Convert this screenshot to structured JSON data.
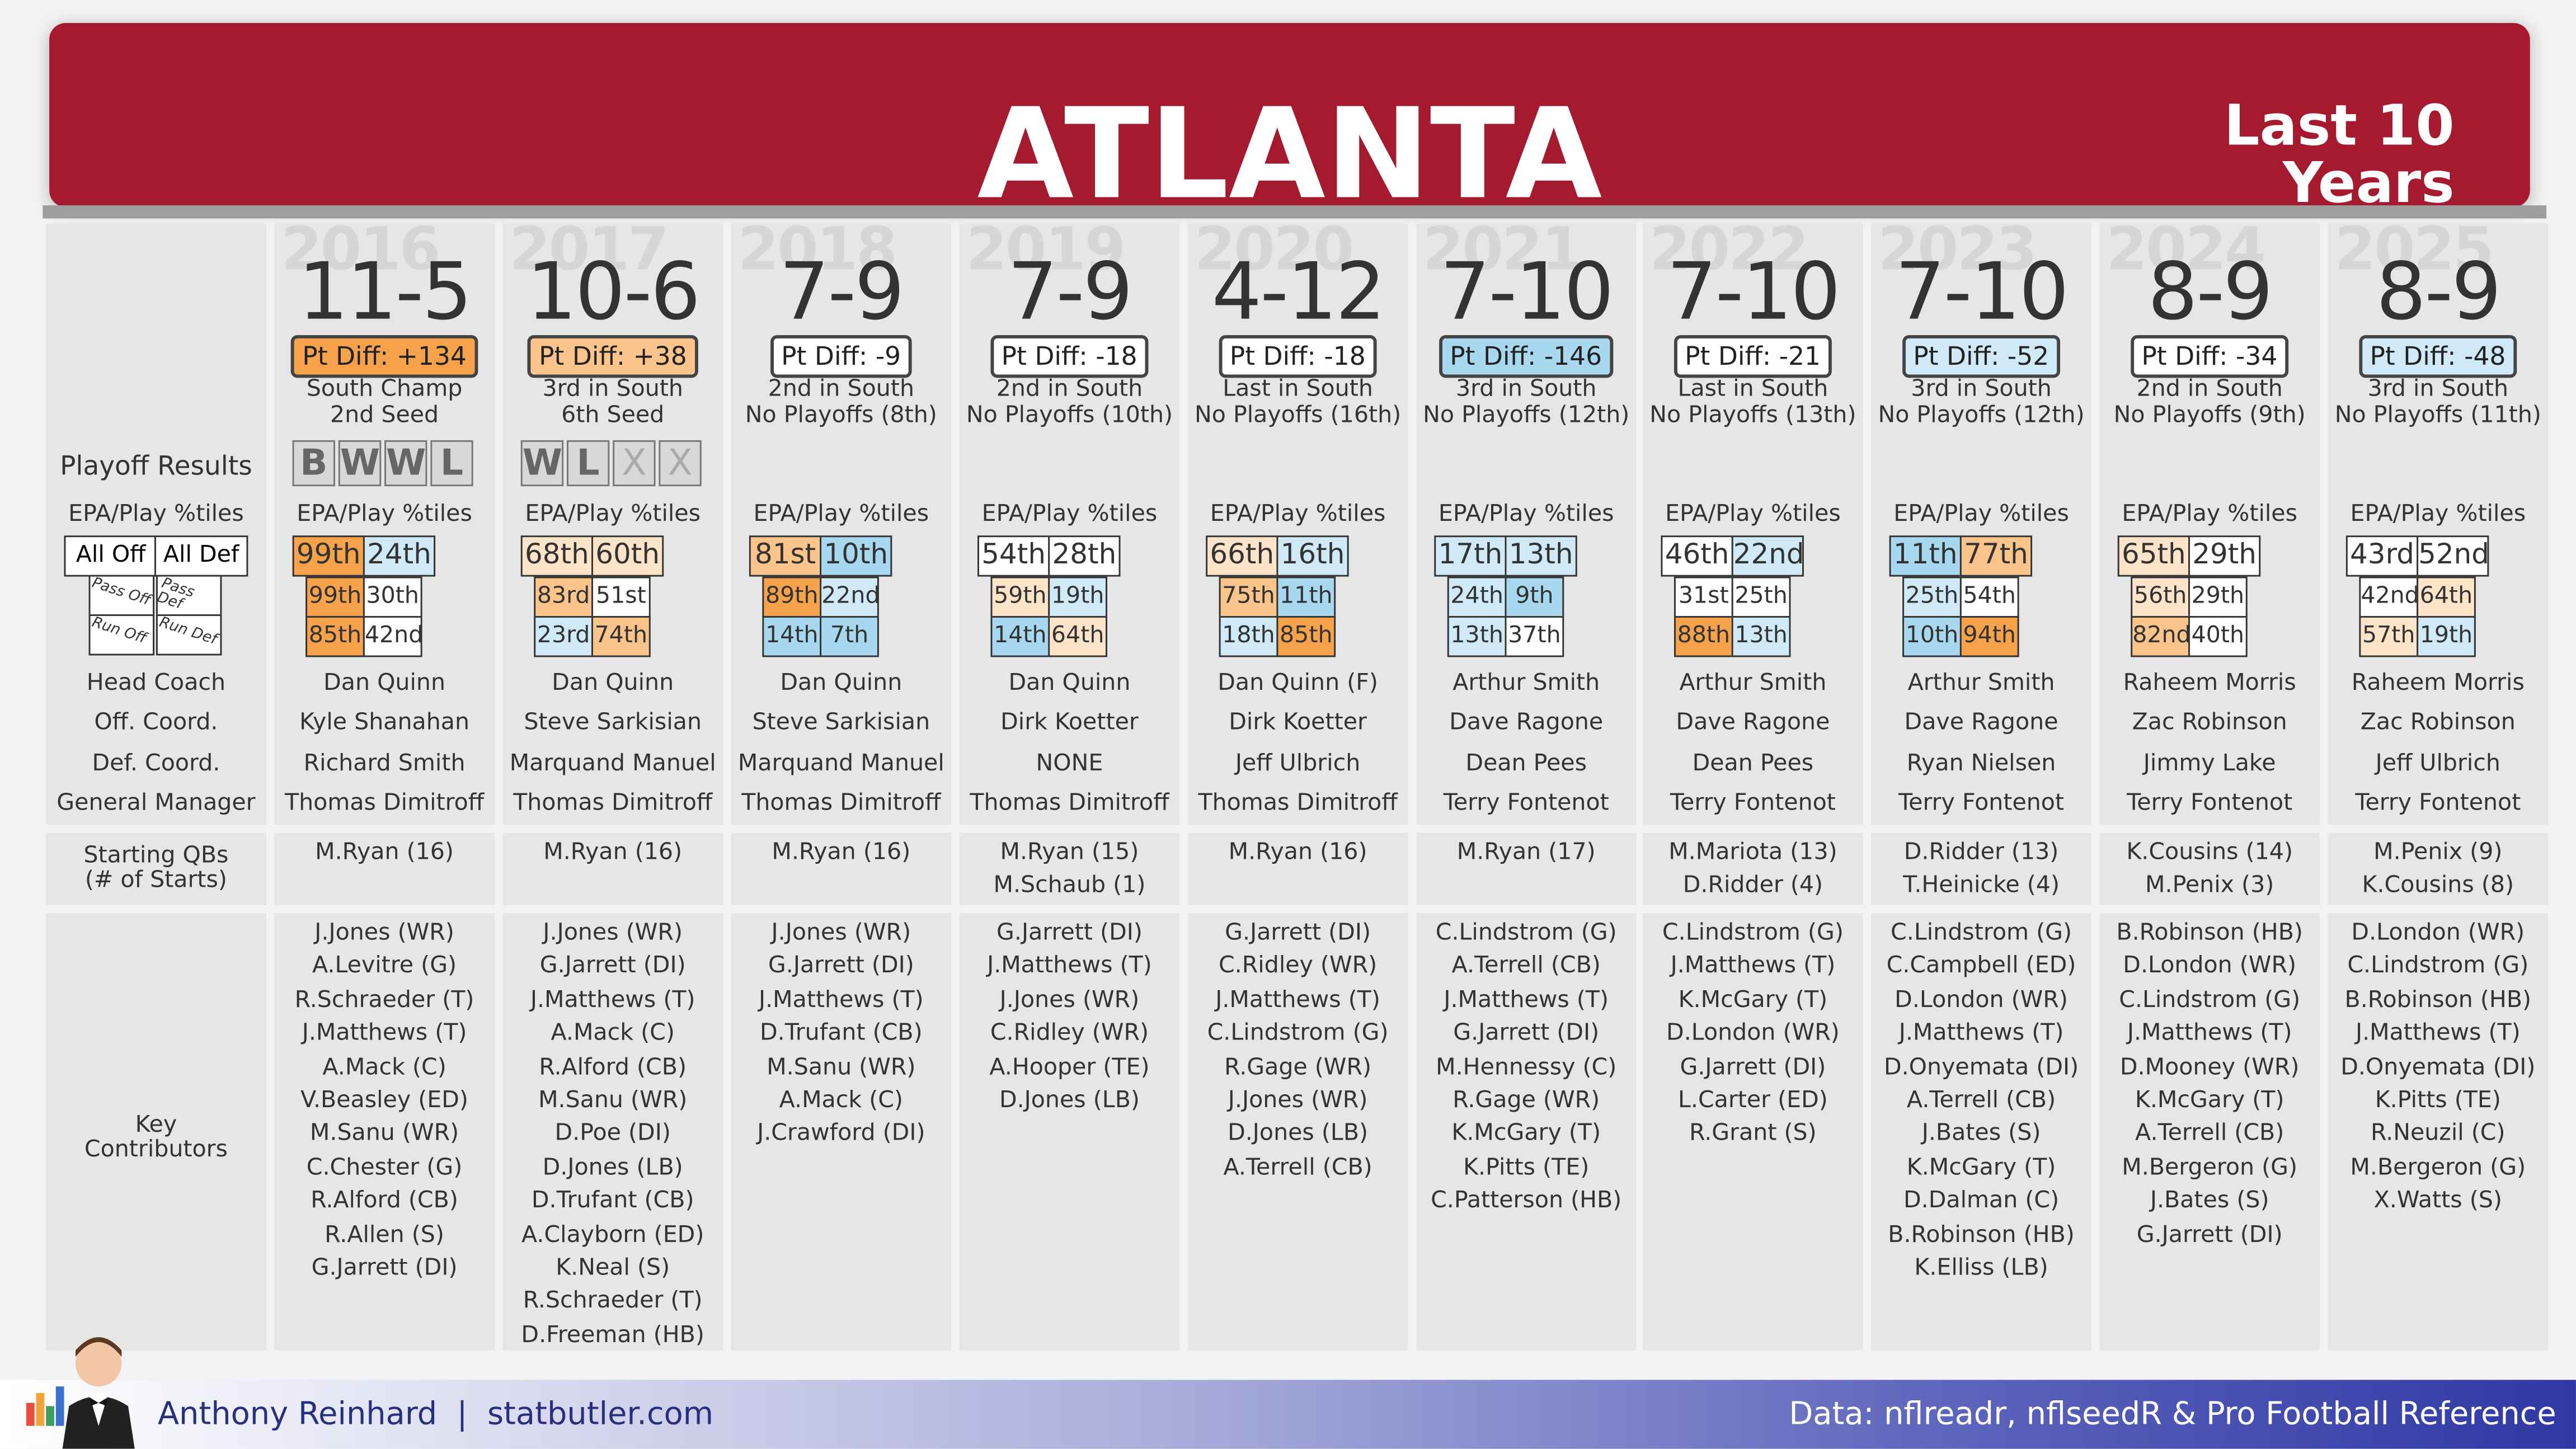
{
  "header": {
    "title": "ATLANTA",
    "subtitle_line1": "Last 10",
    "subtitle_line2": "Years"
  },
  "labels": {
    "playoff_results": "Playoff Results",
    "epa_header": "EPA/Play %tiles",
    "all_off": "All Off",
    "all_def": "All Def",
    "pass_off": "Pass Off",
    "pass_def": "Pass Def",
    "run_off": "Run Off",
    "run_def": "Run Def",
    "head_coach": "Head Coach",
    "off_coord": "Off. Coord.",
    "def_coord": "Def. Coord.",
    "general_manager": "General Manager",
    "starting_qbs_1": "Starting QBs",
    "starting_qbs_2": "(# of Starts)",
    "key_contributors_1": "Key",
    "key_contributors_2": "Contributors"
  },
  "colors": {
    "banner": "#a51a2f",
    "orange_dark": "#f5a24a",
    "orange_mid": "#fac48a",
    "orange_light": "#fde3c8",
    "blue_dark": "#a7d8ef",
    "blue_light": "#cfe9f6",
    "neutral": "#ffffff"
  },
  "seasons": [
    {
      "year": "2016",
      "record": "11-5",
      "pt_diff": "Pt Diff: +134",
      "finish": "South Champ",
      "seed": "2nd Seed",
      "pt_color": "#f5a24a",
      "playoffs": [
        {
          "letter": "B",
          "style": "result"
        },
        {
          "letter": "W",
          "style": "result"
        },
        {
          "letter": "W",
          "style": "result"
        },
        {
          "letter": "L",
          "style": "result"
        }
      ],
      "epa": {
        "off": {
          "value": "99th",
          "color": "#f5a24a"
        },
        "def": {
          "value": "24th",
          "color": "#cfe9f6"
        },
        "pass_off": {
          "value": "99th",
          "color": "#f5a24a"
        },
        "pass_def": {
          "value": "30th",
          "color": "#ffffff"
        },
        "run_off": {
          "value": "85th",
          "color": "#f5a24a"
        },
        "run_def": {
          "value": "42nd",
          "color": "#ffffff"
        }
      },
      "coach": "Dan Quinn",
      "oc": "Kyle Shanahan",
      "dc": "Richard Smith",
      "gm": "Thomas Dimitroff",
      "qbs": [
        "M.Ryan (16)"
      ],
      "contributors": [
        "J.Jones (WR)",
        "A.Levitre (G)",
        "R.Schraeder (T)",
        "J.Matthews (T)",
        "A.Mack (C)",
        "V.Beasley (ED)",
        "M.Sanu (WR)",
        "C.Chester (G)",
        "R.Alford (CB)",
        "R.Allen (S)",
        "G.Jarrett (DI)"
      ]
    },
    {
      "year": "2017",
      "record": "10-6",
      "pt_diff": "Pt Diff: +38",
      "finish": "3rd in South",
      "seed": "6th Seed",
      "pt_color": "#fac48a",
      "playoffs": [
        {
          "letter": "W",
          "style": "result"
        },
        {
          "letter": "L",
          "style": "result"
        },
        {
          "letter": "X",
          "style": "x"
        },
        {
          "letter": "X",
          "style": "x"
        }
      ],
      "epa": {
        "off": {
          "value": "68th",
          "color": "#fde3c8"
        },
        "def": {
          "value": "60th",
          "color": "#fde3c8"
        },
        "pass_off": {
          "value": "83rd",
          "color": "#fac48a"
        },
        "pass_def": {
          "value": "51st",
          "color": "#ffffff"
        },
        "run_off": {
          "value": "23rd",
          "color": "#cfe9f6"
        },
        "run_def": {
          "value": "74th",
          "color": "#fac48a"
        }
      },
      "coach": "Dan Quinn",
      "oc": "Steve Sarkisian",
      "dc": "Marquand Manuel",
      "gm": "Thomas Dimitroff",
      "qbs": [
        "M.Ryan (16)"
      ],
      "contributors": [
        "J.Jones (WR)",
        "G.Jarrett (DI)",
        "J.Matthews (T)",
        "A.Mack (C)",
        "R.Alford (CB)",
        "M.Sanu (WR)",
        "D.Poe (DI)",
        "D.Jones (LB)",
        "D.Trufant (CB)",
        "A.Clayborn (ED)",
        "K.Neal (S)",
        "R.Schraeder (T)",
        "D.Freeman (HB)"
      ]
    },
    {
      "year": "2018",
      "record": "7-9",
      "pt_diff": "Pt Diff: -9",
      "finish": "2nd in South",
      "seed": "No Playoffs (8th)",
      "pt_color": "#ffffff",
      "playoffs": [],
      "epa": {
        "off": {
          "value": "81st",
          "color": "#fac48a"
        },
        "def": {
          "value": "10th",
          "color": "#a7d8ef"
        },
        "pass_off": {
          "value": "89th",
          "color": "#f5a24a"
        },
        "pass_def": {
          "value": "22nd",
          "color": "#cfe9f6"
        },
        "run_off": {
          "value": "14th",
          "color": "#a7d8ef"
        },
        "run_def": {
          "value": "7th",
          "color": "#a7d8ef"
        }
      },
      "coach": "Dan Quinn",
      "oc": "Steve Sarkisian",
      "dc": "Marquand Manuel",
      "gm": "Thomas Dimitroff",
      "qbs": [
        "M.Ryan (16)"
      ],
      "contributors": [
        "J.Jones (WR)",
        "G.Jarrett (DI)",
        "J.Matthews (T)",
        "D.Trufant (CB)",
        "M.Sanu (WR)",
        "A.Mack (C)",
        "J.Crawford (DI)"
      ]
    },
    {
      "year": "2019",
      "record": "7-9",
      "pt_diff": "Pt Diff: -18",
      "finish": "2nd in South",
      "seed": "No Playoffs (10th)",
      "pt_color": "#ffffff",
      "playoffs": [],
      "epa": {
        "off": {
          "value": "54th",
          "color": "#ffffff"
        },
        "def": {
          "value": "28th",
          "color": "#ffffff"
        },
        "pass_off": {
          "value": "59th",
          "color": "#fde3c8"
        },
        "pass_def": {
          "value": "19th",
          "color": "#cfe9f6"
        },
        "run_off": {
          "value": "14th",
          "color": "#a7d8ef"
        },
        "run_def": {
          "value": "64th",
          "color": "#fde3c8"
        }
      },
      "coach": "Dan Quinn",
      "oc": "Dirk Koetter",
      "dc": "NONE",
      "gm": "Thomas Dimitroff",
      "qbs": [
        "M.Ryan (15)",
        "M.Schaub (1)"
      ],
      "contributors": [
        "G.Jarrett (DI)",
        "J.Matthews (T)",
        "J.Jones (WR)",
        "C.Ridley (WR)",
        "A.Hooper (TE)",
        "D.Jones (LB)"
      ]
    },
    {
      "year": "2020",
      "record": "4-12",
      "pt_diff": "Pt Diff: -18",
      "finish": "Last in South",
      "seed": "No Playoffs (16th)",
      "pt_color": "#ffffff",
      "playoffs": [],
      "epa": {
        "off": {
          "value": "66th",
          "color": "#fde3c8"
        },
        "def": {
          "value": "16th",
          "color": "#cfe9f6"
        },
        "pass_off": {
          "value": "75th",
          "color": "#fac48a"
        },
        "pass_def": {
          "value": "11th",
          "color": "#a7d8ef"
        },
        "run_off": {
          "value": "18th",
          "color": "#cfe9f6"
        },
        "run_def": {
          "value": "85th",
          "color": "#f5a24a"
        }
      },
      "coach": "Dan Quinn (F)",
      "oc": "Dirk Koetter",
      "dc": "Jeff Ulbrich",
      "gm": "Thomas Dimitroff",
      "qbs": [
        "M.Ryan (16)"
      ],
      "contributors": [
        "G.Jarrett (DI)",
        "C.Ridley (WR)",
        "J.Matthews (T)",
        "C.Lindstrom (G)",
        "R.Gage (WR)",
        "J.Jones (WR)",
        "D.Jones (LB)",
        "A.Terrell (CB)"
      ]
    },
    {
      "year": "2021",
      "record": "7-10",
      "pt_diff": "Pt Diff: -146",
      "finish": "3rd in South",
      "seed": "No Playoffs (12th)",
      "pt_color": "#a7d8ef",
      "playoffs": [],
      "epa": {
        "off": {
          "value": "17th",
          "color": "#cfe9f6"
        },
        "def": {
          "value": "13th",
          "color": "#cfe9f6"
        },
        "pass_off": {
          "value": "24th",
          "color": "#cfe9f6"
        },
        "pass_def": {
          "value": "9th",
          "color": "#a7d8ef"
        },
        "run_off": {
          "value": "13th",
          "color": "#cfe9f6"
        },
        "run_def": {
          "value": "37th",
          "color": "#ffffff"
        }
      },
      "coach": "Arthur Smith",
      "oc": "Dave Ragone",
      "dc": "Dean Pees",
      "gm": "Terry Fontenot",
      "qbs": [
        "M.Ryan (17)"
      ],
      "contributors": [
        "C.Lindstrom (G)",
        "A.Terrell (CB)",
        "J.Matthews (T)",
        "G.Jarrett (DI)",
        "M.Hennessy (C)",
        "R.Gage (WR)",
        "K.McGary (T)",
        "K.Pitts (TE)",
        "C.Patterson (HB)"
      ]
    },
    {
      "year": "2022",
      "record": "7-10",
      "pt_diff": "Pt Diff: -21",
      "finish": "Last in South",
      "seed": "No Playoffs (13th)",
      "pt_color": "#ffffff",
      "playoffs": [],
      "epa": {
        "off": {
          "value": "46th",
          "color": "#ffffff"
        },
        "def": {
          "value": "22nd",
          "color": "#cfe9f6"
        },
        "pass_off": {
          "value": "31st",
          "color": "#ffffff"
        },
        "pass_def": {
          "value": "25th",
          "color": "#ffffff"
        },
        "run_off": {
          "value": "88th",
          "color": "#f5a24a"
        },
        "run_def": {
          "value": "13th",
          "color": "#cfe9f6"
        }
      },
      "coach": "Arthur Smith",
      "oc": "Dave Ragone",
      "dc": "Dean Pees",
      "gm": "Terry Fontenot",
      "qbs": [
        "M.Mariota (13)",
        "D.Ridder (4)"
      ],
      "contributors": [
        "C.Lindstrom (G)",
        "J.Matthews (T)",
        "K.McGary (T)",
        "D.London (WR)",
        "G.Jarrett (DI)",
        "L.Carter (ED)",
        "R.Grant (S)"
      ]
    },
    {
      "year": "2023",
      "record": "7-10",
      "pt_diff": "Pt Diff: -52",
      "finish": "3rd in South",
      "seed": "No Playoffs (12th)",
      "pt_color": "#cfe9f6",
      "playoffs": [],
      "epa": {
        "off": {
          "value": "11th",
          "color": "#a7d8ef"
        },
        "def": {
          "value": "77th",
          "color": "#fac48a"
        },
        "pass_off": {
          "value": "25th",
          "color": "#cfe9f6"
        },
        "pass_def": {
          "value": "54th",
          "color": "#ffffff"
        },
        "run_off": {
          "value": "10th",
          "color": "#a7d8ef"
        },
        "run_def": {
          "value": "94th",
          "color": "#f5a24a"
        }
      },
      "coach": "Arthur Smith",
      "oc": "Dave Ragone",
      "dc": "Ryan Nielsen",
      "gm": "Terry Fontenot",
      "qbs": [
        "D.Ridder (13)",
        "T.Heinicke (4)"
      ],
      "contributors": [
        "C.Lindstrom (G)",
        "C.Campbell (ED)",
        "D.London (WR)",
        "J.Matthews (T)",
        "D.Onyemata (DI)",
        "A.Terrell (CB)",
        "J.Bates (S)",
        "K.McGary (T)",
        "D.Dalman (C)",
        "B.Robinson (HB)",
        "K.Elliss (LB)"
      ]
    },
    {
      "year": "2024",
      "record": "8-9",
      "pt_diff": "Pt Diff: -34",
      "finish": "2nd in South",
      "seed": "No Playoffs (9th)",
      "pt_color": "#ffffff",
      "playoffs": [],
      "epa": {
        "off": {
          "value": "65th",
          "color": "#fde3c8"
        },
        "def": {
          "value": "29th",
          "color": "#ffffff"
        },
        "pass_off": {
          "value": "56th",
          "color": "#fde3c8"
        },
        "pass_def": {
          "value": "29th",
          "color": "#ffffff"
        },
        "run_off": {
          "value": "82nd",
          "color": "#fac48a"
        },
        "run_def": {
          "value": "40th",
          "color": "#ffffff"
        }
      },
      "coach": "Raheem Morris",
      "oc": "Zac Robinson",
      "dc": "Jimmy Lake",
      "gm": "Terry Fontenot",
      "qbs": [
        "K.Cousins (14)",
        "M.Penix (3)"
      ],
      "contributors": [
        "B.Robinson (HB)",
        "D.London (WR)",
        "C.Lindstrom (G)",
        "J.Matthews (T)",
        "D.Mooney (WR)",
        "K.McGary (T)",
        "A.Terrell (CB)",
        "M.Bergeron (G)",
        "J.Bates (S)",
        "G.Jarrett (DI)"
      ]
    },
    {
      "year": "2025",
      "record": "8-9",
      "pt_diff": "Pt Diff: -48",
      "finish": "3rd in South",
      "seed": "No Playoffs (11th)",
      "pt_color": "#cfe9f6",
      "playoffs": [],
      "epa": {
        "off": {
          "value": "43rd",
          "color": "#ffffff"
        },
        "def": {
          "value": "52nd",
          "color": "#ffffff"
        },
        "pass_off": {
          "value": "42nd",
          "color": "#ffffff"
        },
        "pass_def": {
          "value": "64th",
          "color": "#fde3c8"
        },
        "run_off": {
          "value": "57th",
          "color": "#fde3c8"
        },
        "run_def": {
          "value": "19th",
          "color": "#cfe9f6"
        }
      },
      "coach": "Raheem Morris",
      "oc": "Zac Robinson",
      "dc": "Jeff Ulbrich",
      "gm": "Terry Fontenot",
      "qbs": [
        "M.Penix (9)",
        "K.Cousins (8)"
      ],
      "contributors": [
        "D.London (WR)",
        "C.Lindstrom (G)",
        "B.Robinson (HB)",
        "J.Matthews (T)",
        "D.Onyemata (DI)",
        "K.Pitts (TE)",
        "R.Neuzil (C)",
        "M.Bergeron (G)",
        "X.Watts (S)"
      ]
    }
  ],
  "footer": {
    "author": "Anthony Reinhard  |  statbutler.com",
    "source": "Data: nflreadr, nflseedR & Pro Football Reference"
  }
}
